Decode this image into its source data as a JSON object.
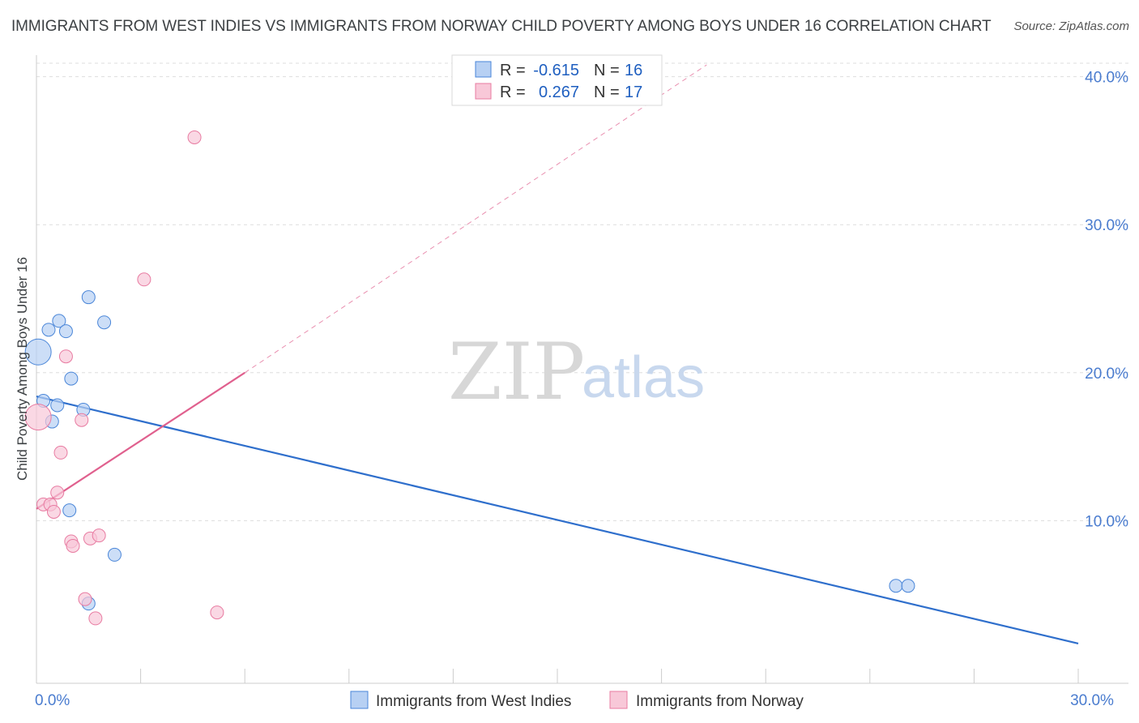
{
  "title": "IMMIGRANTS FROM WEST INDIES VS IMMIGRANTS FROM NORWAY CHILD POVERTY AMONG BOYS UNDER 16 CORRELATION CHART",
  "source": "Source: ZipAtlas.com",
  "watermark": {
    "zip": "ZIP",
    "atlas": "atlas"
  },
  "colors": {
    "blue": "#4a86d8",
    "blue_fill": "#b7d0f3",
    "blue_line": "#2f6fcc",
    "pink": "#e87ba1",
    "pink_fill": "#f8c8d8",
    "pink_line": "#e0608e",
    "axis_text": "#4a7ccf",
    "grid": "#dddddd"
  },
  "legend": {
    "rows": [
      {
        "r_label": "R =",
        "r_value": "-0.615",
        "n_label": "N =",
        "n_value": "16",
        "series": "blue"
      },
      {
        "r_label": "R =",
        "r_value": "0.267",
        "n_label": "N =",
        "n_value": "17",
        "series": "pink"
      }
    ]
  },
  "bottom_legend": [
    {
      "label": "Immigrants from West Indies",
      "series": "blue"
    },
    {
      "label": "Immigrants from Norway",
      "series": "pink"
    }
  ],
  "chart_data": {
    "type": "scatter",
    "title": "IMMIGRANTS FROM WEST INDIES VS IMMIGRANTS FROM NORWAY CHILD POVERTY AMONG BOYS UNDER 16 CORRELATION CHART",
    "xlabel": "",
    "ylabel": "Child Poverty Among Boys Under 16",
    "xlim": [
      0,
      30
    ],
    "ylim": [
      0,
      40.8
    ],
    "x_tick_labels": [
      {
        "value": 0,
        "label": "0.0%"
      },
      {
        "value": 30,
        "label": "30.0%"
      }
    ],
    "x_minor_ticks": [
      3,
      6,
      9,
      12,
      15,
      18,
      21,
      24,
      27,
      30
    ],
    "y_ticks": [
      {
        "value": 10,
        "label": "10.0%"
      },
      {
        "value": 20,
        "label": "20.0%"
      },
      {
        "value": 30,
        "label": "30.0%"
      },
      {
        "value": 40,
        "label": "40.0%"
      }
    ],
    "grid": true,
    "series": [
      {
        "name": "Immigrants from West Indies",
        "color": "blue",
        "points": [
          {
            "x": 0.05,
            "y": 21.4,
            "big": true
          },
          {
            "x": 0.2,
            "y": 18.1
          },
          {
            "x": 0.35,
            "y": 22.9
          },
          {
            "x": 0.45,
            "y": 16.7
          },
          {
            "x": 0.6,
            "y": 17.8
          },
          {
            "x": 0.65,
            "y": 23.5
          },
          {
            "x": 0.85,
            "y": 22.8
          },
          {
            "x": 0.95,
            "y": 10.7
          },
          {
            "x": 1.0,
            "y": 19.6
          },
          {
            "x": 1.35,
            "y": 17.5
          },
          {
            "x": 1.5,
            "y": 4.4
          },
          {
            "x": 1.5,
            "y": 25.1
          },
          {
            "x": 1.95,
            "y": 23.4
          },
          {
            "x": 2.25,
            "y": 7.7
          },
          {
            "x": 24.75,
            "y": 5.6
          },
          {
            "x": 25.1,
            "y": 5.6
          }
        ],
        "trendline": {
          "x1": 0,
          "y1": 18.4,
          "x2": 30,
          "y2": 1.7,
          "dashed_extension": false
        }
      },
      {
        "name": "Immigrants from Norway",
        "color": "pink",
        "points": [
          {
            "x": 0.05,
            "y": 17.0,
            "big": true
          },
          {
            "x": 0.2,
            "y": 11.1
          },
          {
            "x": 0.4,
            "y": 11.1
          },
          {
            "x": 0.5,
            "y": 10.6
          },
          {
            "x": 0.6,
            "y": 11.9
          },
          {
            "x": 0.7,
            "y": 14.6
          },
          {
            "x": 0.85,
            "y": 21.1
          },
          {
            "x": 1.0,
            "y": 8.6
          },
          {
            "x": 1.05,
            "y": 8.3
          },
          {
            "x": 1.3,
            "y": 16.8
          },
          {
            "x": 1.4,
            "y": 4.7
          },
          {
            "x": 1.55,
            "y": 8.8
          },
          {
            "x": 1.7,
            "y": 3.4
          },
          {
            "x": 1.8,
            "y": 9.0
          },
          {
            "x": 3.1,
            "y": 26.3
          },
          {
            "x": 4.55,
            "y": 35.9
          },
          {
            "x": 5.2,
            "y": 3.8
          }
        ],
        "trendline": {
          "x1": 0,
          "y1": 10.8,
          "x2": 6.0,
          "y2": 20.0,
          "dash_x2": 19.3,
          "dash_y2": 40.8
        }
      }
    ]
  }
}
